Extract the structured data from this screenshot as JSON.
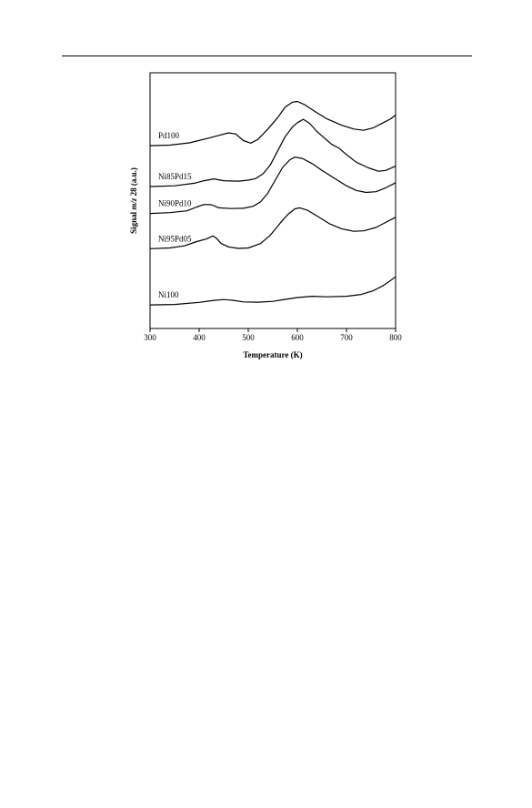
{
  "chart_data": {
    "type": "line",
    "xlabel": "Temperature (K)",
    "ylabel": "Signal m/z 28 (a.u.)",
    "xlim": [
      300,
      800
    ],
    "ylim": [
      0,
      100
    ],
    "xticks": [
      300,
      400,
      500,
      600,
      700,
      800
    ],
    "grid": false,
    "legend": "labels placed beside each curve",
    "series": [
      {
        "name": "Pd100",
        "points": [
          [
            300,
            71.5
          ],
          [
            340,
            71.7
          ],
          [
            380,
            72.6
          ],
          [
            420,
            74.5
          ],
          [
            440,
            75.5
          ],
          [
            460,
            76.5
          ],
          [
            475,
            76.0
          ],
          [
            490,
            73.5
          ],
          [
            505,
            72.5
          ],
          [
            520,
            74.0
          ],
          [
            540,
            78.0
          ],
          [
            560,
            82.5
          ],
          [
            575,
            86.5
          ],
          [
            590,
            88.5
          ],
          [
            600,
            88.8
          ],
          [
            615,
            87.5
          ],
          [
            635,
            85.0
          ],
          [
            660,
            82.0
          ],
          [
            690,
            79.5
          ],
          [
            715,
            78.0
          ],
          [
            735,
            77.5
          ],
          [
            755,
            78.5
          ],
          [
            775,
            80.5
          ],
          [
            790,
            82.0
          ],
          [
            800,
            83.5
          ]
        ]
      },
      {
        "name": "Ni85Pd15",
        "points": [
          [
            300,
            55.5
          ],
          [
            350,
            55.8
          ],
          [
            390,
            56.8
          ],
          [
            410,
            57.8
          ],
          [
            430,
            58.5
          ],
          [
            450,
            57.8
          ],
          [
            480,
            57.6
          ],
          [
            500,
            58.0
          ],
          [
            515,
            58.6
          ],
          [
            530,
            60.5
          ],
          [
            545,
            64.0
          ],
          [
            560,
            69.5
          ],
          [
            575,
            75.0
          ],
          [
            590,
            78.8
          ],
          [
            600,
            80.5
          ],
          [
            612,
            81.8
          ],
          [
            625,
            80.2
          ],
          [
            640,
            77.0
          ],
          [
            655,
            74.5
          ],
          [
            670,
            72.0
          ],
          [
            685,
            70.5
          ],
          [
            700,
            68.0
          ],
          [
            720,
            65.0
          ],
          [
            745,
            62.8
          ],
          [
            765,
            61.5
          ],
          [
            780,
            61.8
          ],
          [
            800,
            63.5
          ]
        ]
      },
      {
        "name": "Ni90Pd10",
        "points": [
          [
            300,
            45.0
          ],
          [
            340,
            45.3
          ],
          [
            375,
            46.0
          ],
          [
            395,
            47.5
          ],
          [
            410,
            48.5
          ],
          [
            425,
            48.4
          ],
          [
            440,
            47.2
          ],
          [
            465,
            46.9
          ],
          [
            490,
            47.0
          ],
          [
            510,
            47.8
          ],
          [
            525,
            49.5
          ],
          [
            540,
            53.0
          ],
          [
            555,
            58.0
          ],
          [
            570,
            63.0
          ],
          [
            585,
            66.0
          ],
          [
            595,
            67.0
          ],
          [
            610,
            66.5
          ],
          [
            630,
            64.5
          ],
          [
            650,
            61.8
          ],
          [
            675,
            58.8
          ],
          [
            700,
            55.8
          ],
          [
            720,
            54.0
          ],
          [
            740,
            53.2
          ],
          [
            760,
            53.5
          ],
          [
            780,
            55.0
          ],
          [
            800,
            57.0
          ]
        ]
      },
      {
        "name": "Ni95Pd05",
        "points": [
          [
            300,
            31.2
          ],
          [
            340,
            31.5
          ],
          [
            370,
            32.3
          ],
          [
            395,
            34.0
          ],
          [
            415,
            35.0
          ],
          [
            428,
            36.2
          ],
          [
            435,
            35.3
          ],
          [
            445,
            33.2
          ],
          [
            460,
            31.9
          ],
          [
            480,
            31.3
          ],
          [
            500,
            31.5
          ],
          [
            525,
            33.2
          ],
          [
            545,
            36.5
          ],
          [
            565,
            41.2
          ],
          [
            580,
            44.5
          ],
          [
            595,
            46.8
          ],
          [
            605,
            47.2
          ],
          [
            620,
            46.3
          ],
          [
            640,
            44.0
          ],
          [
            665,
            41.0
          ],
          [
            690,
            39.0
          ],
          [
            715,
            38.0
          ],
          [
            735,
            38.2
          ],
          [
            760,
            39.5
          ],
          [
            780,
            41.5
          ],
          [
            800,
            43.5
          ]
        ]
      },
      {
        "name": "Ni100",
        "points": [
          [
            300,
            9.2
          ],
          [
            350,
            9.4
          ],
          [
            400,
            10.2
          ],
          [
            430,
            11.0
          ],
          [
            450,
            11.3
          ],
          [
            470,
            11.0
          ],
          [
            490,
            10.4
          ],
          [
            520,
            10.3
          ],
          [
            550,
            10.6
          ],
          [
            575,
            11.4
          ],
          [
            600,
            12.1
          ],
          [
            630,
            12.6
          ],
          [
            660,
            12.4
          ],
          [
            700,
            12.6
          ],
          [
            730,
            13.3
          ],
          [
            755,
            14.8
          ],
          [
            775,
            16.8
          ],
          [
            790,
            18.8
          ],
          [
            800,
            20.2
          ]
        ]
      }
    ]
  }
}
